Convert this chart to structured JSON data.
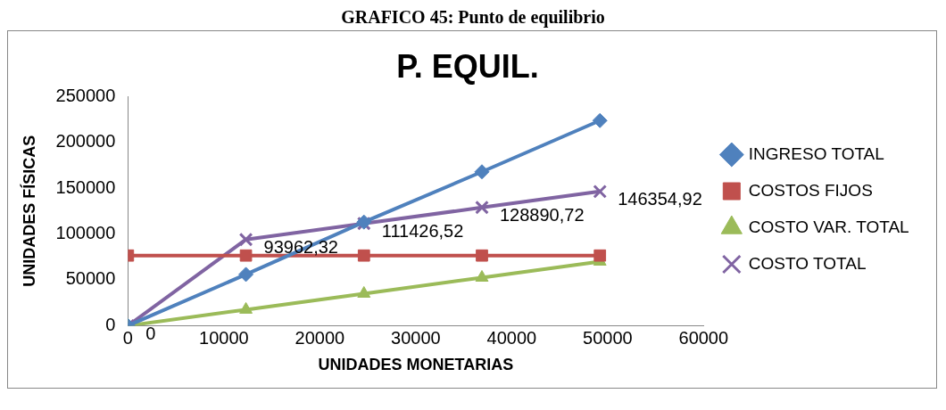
{
  "chart_data": {
    "type": "line",
    "title": "P. EQUIL.",
    "annotations": [
      "GRAFICO 45: Punto de equilibrio"
    ],
    "xlabel": "UNIDADES MONETARIAS",
    "ylabel": "UNIDADES FÍSICAS",
    "x": [
      0,
      12300,
      24600,
      36900,
      49200
    ],
    "xlim": [
      0,
      60000
    ],
    "xticks": [
      0,
      10000,
      20000,
      30000,
      40000,
      50000,
      60000
    ],
    "ylim": [
      0,
      250000
    ],
    "yticks": [
      0,
      50000,
      100000,
      150000,
      200000,
      250000
    ],
    "grid": false,
    "legend": "right",
    "series": [
      {
        "name": "INGRESO TOTAL",
        "color": "#4f81bd",
        "marker": "diamond",
        "values": [
          0,
          55900,
          113000,
          167800,
          223700
        ]
      },
      {
        "name": "COSTOS FIJOS",
        "color": "#c0504d",
        "marker": "square",
        "values": [
          76500,
          76500,
          76500,
          76500,
          76500
        ]
      },
      {
        "name": "COSTO VAR. TOTAL",
        "color": "#9bbb59",
        "marker": "triangle",
        "values": [
          0,
          17500,
          34900,
          52400,
          69900
        ]
      },
      {
        "name": "COSTO TOTAL",
        "color": "#8064a2",
        "marker": "cross",
        "values": [
          0,
          93962.32,
          111426.52,
          128890.72,
          146354.92
        ],
        "value_labels": [
          "0",
          "93962,32",
          "111426,52",
          "128890,72",
          "146354,92"
        ]
      }
    ]
  }
}
